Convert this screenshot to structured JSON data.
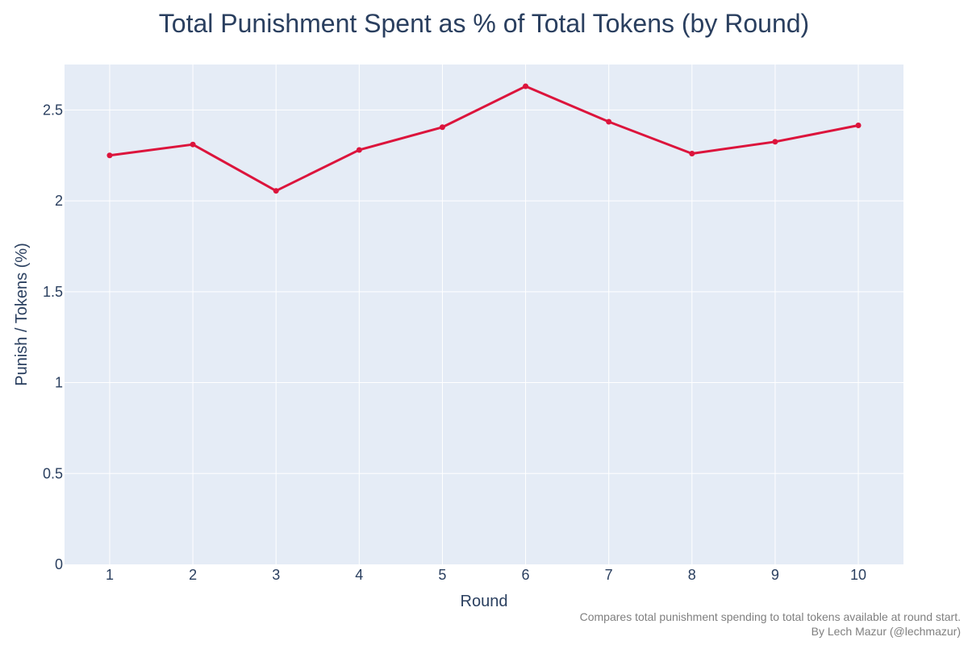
{
  "chart_data": {
    "type": "line",
    "title": "Total Punishment Spent as % of Total Tokens (by Round)",
    "xlabel": "Round",
    "ylabel": "Punish / Tokens (%)",
    "x": [
      1,
      2,
      3,
      4,
      5,
      6,
      7,
      8,
      9,
      10
    ],
    "x_tick_labels": [
      "1",
      "2",
      "3",
      "4",
      "5",
      "6",
      "7",
      "8",
      "9",
      "10"
    ],
    "y": [
      2.25,
      2.31,
      2.055,
      2.28,
      2.405,
      2.63,
      2.435,
      2.26,
      2.325,
      2.415
    ],
    "ylim": [
      0,
      2.75
    ],
    "y_ticks": [
      0,
      0.5,
      1,
      1.5,
      2,
      2.5
    ],
    "y_tick_labels": [
      "0",
      "0.5",
      "1",
      "1.5",
      "2",
      "2.5"
    ],
    "grid": true,
    "line_color": "#dc143c",
    "plot_background": "#e5ecf6",
    "annotations": [
      "Compares total punishment spending to total tokens available at round start.",
      "By Lech Mazur (@lechmazur)"
    ]
  }
}
